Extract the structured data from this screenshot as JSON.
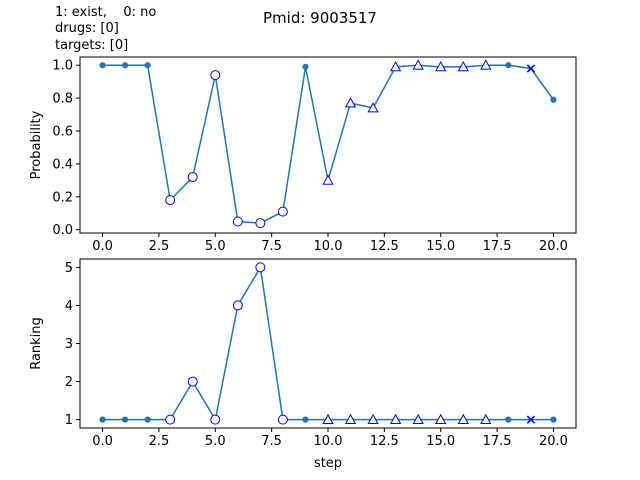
{
  "figure": {
    "title": "Pmid: 9003517",
    "legend_lines": [
      "1: exist,    0: no",
      "drugs: [0]",
      "targets: [0]"
    ]
  },
  "colors": {
    "line": "#1f77b4",
    "marker_edge": "#0000ff",
    "marker_fill": "#ffffff"
  },
  "chart_data": [
    {
      "type": "line",
      "ylabel": "Probability",
      "xlabel": "",
      "xlim": [
        -1.0,
        21.0
      ],
      "ylim": [
        -0.02,
        1.05
      ],
      "xticks": [
        "0.0",
        "2.5",
        "5.0",
        "7.5",
        "10.0",
        "12.5",
        "15.0",
        "17.5",
        "20.0"
      ],
      "yticks": [
        "0.0",
        "0.2",
        "0.4",
        "0.6",
        "0.8",
        "1.0"
      ],
      "x": [
        0,
        1,
        2,
        3,
        4,
        5,
        6,
        7,
        8,
        9,
        10,
        11,
        12,
        13,
        14,
        15,
        16,
        17,
        18,
        19,
        20
      ],
      "y": [
        1.0,
        1.0,
        1.0,
        0.18,
        0.32,
        0.94,
        0.05,
        0.04,
        0.11,
        0.99,
        0.3,
        0.77,
        0.74,
        0.99,
        1.0,
        0.99,
        0.99,
        1.0,
        1.0,
        0.98,
        0.79
      ],
      "markers": [
        "dot",
        "dot",
        "dot",
        "circle",
        "circle",
        "circle",
        "circle",
        "circle",
        "circle",
        "dot",
        "triangle",
        "triangle",
        "triangle",
        "triangle",
        "triangle",
        "triangle",
        "triangle",
        "triangle",
        "dot",
        "x",
        "dot"
      ]
    },
    {
      "type": "line",
      "ylabel": "Ranking",
      "xlabel": "step",
      "xlim": [
        -1.0,
        21.0
      ],
      "ylim": [
        0.78,
        5.22
      ],
      "xticks": [
        "0.0",
        "2.5",
        "5.0",
        "7.5",
        "10.0",
        "12.5",
        "15.0",
        "17.5",
        "20.0"
      ],
      "yticks": [
        "1",
        "2",
        "3",
        "4",
        "5"
      ],
      "x": [
        0,
        1,
        2,
        3,
        4,
        5,
        6,
        7,
        8,
        9,
        10,
        11,
        12,
        13,
        14,
        15,
        16,
        17,
        18,
        19,
        20
      ],
      "y": [
        1,
        1,
        1,
        1,
        2,
        1,
        4,
        5,
        1,
        1,
        1,
        1,
        1,
        1,
        1,
        1,
        1,
        1,
        1,
        1,
        1
      ],
      "markers": [
        "dot",
        "dot",
        "dot",
        "circle",
        "circle",
        "circle",
        "circle",
        "circle",
        "circle",
        "dot",
        "triangle",
        "triangle",
        "triangle",
        "triangle",
        "triangle",
        "triangle",
        "triangle",
        "triangle",
        "dot",
        "x",
        "dot"
      ]
    }
  ]
}
